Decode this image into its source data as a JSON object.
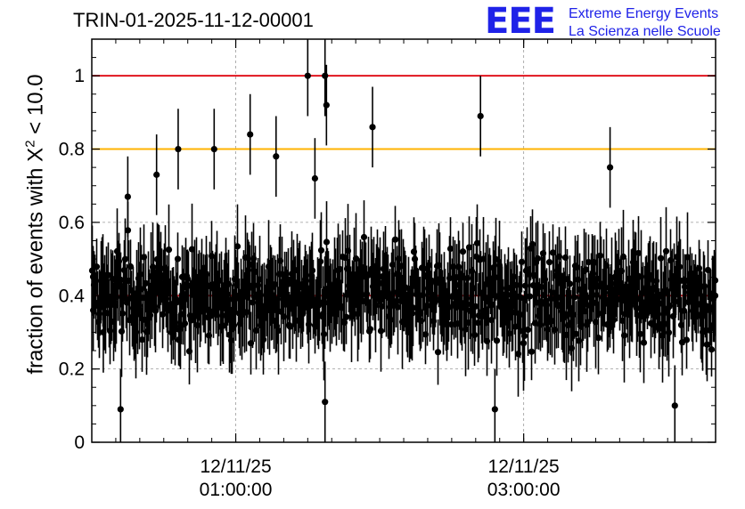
{
  "chart_data": {
    "type": "scatter",
    "title": "TRIN-01-2025-11-12-00001",
    "xlabel": "",
    "ylabel": {
      "prefix": "fraction of events with X",
      "sup": "2",
      "suffix": " < 10.0"
    },
    "ylim": [
      0,
      1.1
    ],
    "yticks": [
      0,
      0.2,
      0.4,
      0.6,
      0.8,
      1
    ],
    "ytick_labels": [
      "0",
      "0.2",
      "0.4",
      "0.6",
      "0.8",
      "1"
    ],
    "xlim_hours": [
      0.0,
      4.333
    ],
    "xticks": [
      {
        "hour": 1.0,
        "date": "12/11/25",
        "time": "01:00:00"
      },
      {
        "hour": 3.0,
        "date": "12/11/25",
        "time": "03:00:00"
      }
    ],
    "grid": true,
    "reference_lines": [
      {
        "y": 1.0,
        "color": "#e0141e"
      },
      {
        "y": 0.8,
        "color": "#ffb300"
      },
      {
        "y": 0.4,
        "color": "#e0141e"
      }
    ],
    "series": [
      {
        "marker": "circle",
        "color": "#000000",
        "n_points": 700,
        "typical_error": 0.1,
        "baseline": 0.4,
        "notable_points": [
          {
            "hour": 0.01,
            "y": 0.36
          },
          {
            "hour": 0.08,
            "y": 0.3
          },
          {
            "hour": 0.2,
            "y": 0.09
          },
          {
            "hour": 0.25,
            "y": 0.67
          },
          {
            "hour": 0.45,
            "y": 0.73
          },
          {
            "hour": 0.6,
            "y": 0.8
          },
          {
            "hour": 0.85,
            "y": 0.8
          },
          {
            "hour": 1.1,
            "y": 0.84
          },
          {
            "hour": 1.28,
            "y": 0.78
          },
          {
            "hour": 1.5,
            "y": 1.0
          },
          {
            "hour": 1.62,
            "y": 1.0
          },
          {
            "hour": 1.63,
            "y": 0.92
          },
          {
            "hour": 1.55,
            "y": 0.72
          },
          {
            "hour": 1.95,
            "y": 0.86
          },
          {
            "hour": 2.7,
            "y": 0.89
          },
          {
            "hour": 3.6,
            "y": 0.75
          },
          {
            "hour": 4.05,
            "y": 0.1
          },
          {
            "hour": 2.8,
            "y": 0.09
          },
          {
            "hour": 1.62,
            "y": 0.11
          },
          {
            "hour": 4.33,
            "y": 0.4
          }
        ]
      }
    ]
  },
  "logo": {
    "mark": "EEE",
    "line1": "Extreme Energy Events",
    "line2": "La Scienza nelle Scuole"
  }
}
